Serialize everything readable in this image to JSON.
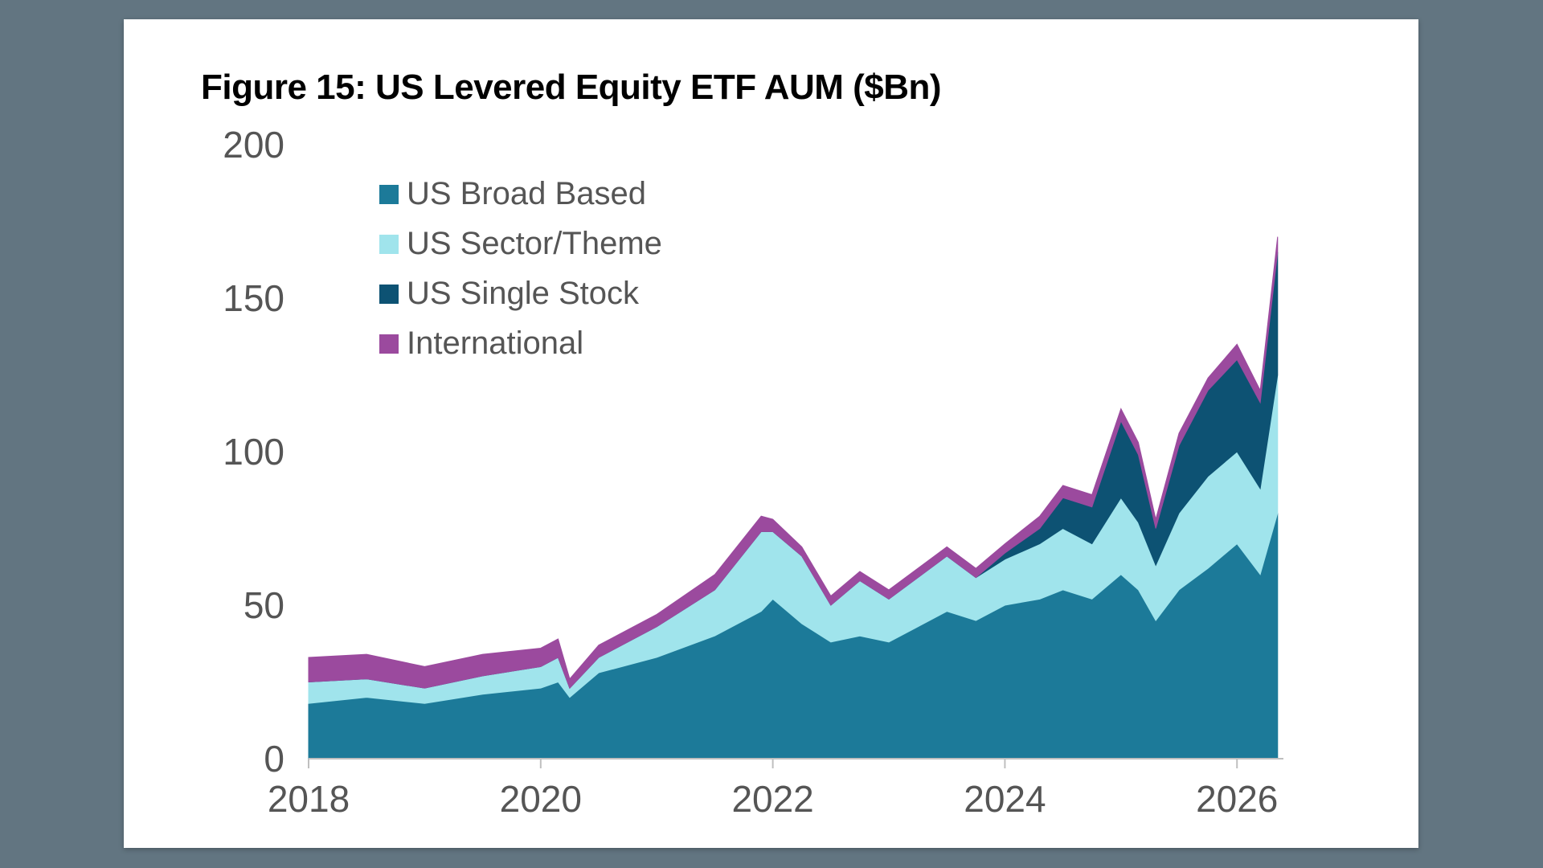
{
  "chart_data": {
    "type": "area",
    "stacked": true,
    "title": "Figure 15: US Levered Equity ETF AUM ($Bn)",
    "xlabel": "",
    "ylabel": "",
    "xlim": [
      2018.0,
      2026.4
    ],
    "ylim": [
      0,
      200
    ],
    "x_ticks": [
      2018,
      2020,
      2022,
      2024,
      2026
    ],
    "y_ticks": [
      0,
      50,
      100,
      150,
      200
    ],
    "grid": false,
    "legend_position": "top-left",
    "x": [
      2018.0,
      2018.5,
      2019.0,
      2019.5,
      2020.0,
      2020.15,
      2020.25,
      2020.5,
      2021.0,
      2021.5,
      2021.9,
      2022.0,
      2022.25,
      2022.5,
      2022.75,
      2023.0,
      2023.5,
      2023.75,
      2024.0,
      2024.3,
      2024.5,
      2024.75,
      2025.0,
      2025.15,
      2025.3,
      2025.5,
      2025.75,
      2026.0,
      2026.2,
      2026.35
    ],
    "series": [
      {
        "name": "US Broad Based",
        "color": "#1c7a99",
        "values": [
          18,
          20,
          18,
          21,
          23,
          25,
          20,
          28,
          33,
          40,
          48,
          52,
          44,
          38,
          40,
          38,
          48,
          45,
          50,
          52,
          55,
          52,
          60,
          55,
          45,
          55,
          62,
          70,
          60,
          80
        ]
      },
      {
        "name": "US Sector/Theme",
        "color": "#a0e4ec",
        "values": [
          7,
          6,
          5,
          6,
          7,
          8,
          3,
          5,
          10,
          15,
          26,
          22,
          22,
          12,
          18,
          14,
          18,
          14,
          15,
          18,
          20,
          18,
          25,
          22,
          18,
          25,
          30,
          30,
          28,
          45
        ]
      },
      {
        "name": "US Single Stock",
        "color": "#0d5273",
        "values": [
          0,
          0,
          0,
          0,
          0,
          0,
          0,
          0,
          0,
          0,
          0,
          0,
          0,
          0,
          0,
          0,
          0,
          0,
          2,
          5,
          10,
          12,
          25,
          22,
          12,
          22,
          28,
          30,
          28,
          40
        ]
      },
      {
        "name": "International",
        "color": "#9b4a9e",
        "values": [
          8,
          8,
          7,
          7,
          6,
          6,
          3,
          4,
          4,
          5,
          5,
          4,
          3,
          3,
          3,
          3,
          3,
          3,
          3,
          4,
          4,
          4,
          4,
          4,
          3,
          4,
          4,
          5,
          4,
          5
        ]
      }
    ]
  }
}
